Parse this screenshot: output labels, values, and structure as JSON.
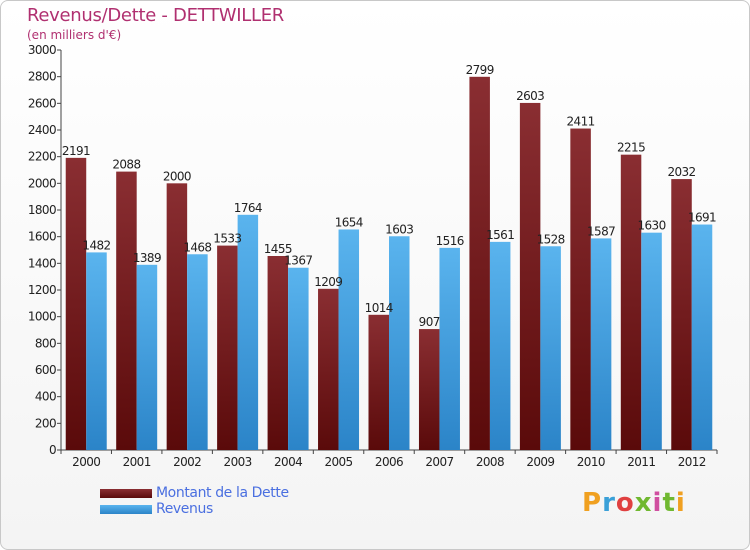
{
  "title": "Revenus/Dette - DETTWILLER",
  "subtitle": "(en milliers d'€)",
  "colors": {
    "dette_top": "#8a2e32",
    "dette_bottom": "#5a0a0a",
    "revenus_top": "#5ab4ee",
    "revenus_bottom": "#2b84c8",
    "title": "#b03070",
    "legend_text": "#4a6fe0"
  },
  "legend": {
    "dette": "Montant de la Dette",
    "revenus": "Revenus"
  },
  "logo": "Proxiti",
  "chart_data": {
    "type": "bar",
    "title": "Revenus/Dette - DETTWILLER",
    "ylabel": "(en milliers d'€)",
    "ylim": [
      0,
      3000
    ],
    "yticks": [
      0,
      200,
      400,
      600,
      800,
      1000,
      1200,
      1400,
      1600,
      1800,
      2000,
      2200,
      2400,
      2600,
      2800,
      3000
    ],
    "grid": false,
    "legend_position": "bottom-left",
    "categories": [
      "2000",
      "2001",
      "2002",
      "2003",
      "2004",
      "2005",
      "2006",
      "2007",
      "2008",
      "2009",
      "2010",
      "2011",
      "2012"
    ],
    "series": [
      {
        "name": "Montant de la Dette",
        "values": [
          2191,
          2088,
          2000,
          1533,
          1455,
          1209,
          1014,
          907,
          2799,
          2603,
          2411,
          2215,
          2032
        ]
      },
      {
        "name": "Revenus",
        "values": [
          1482,
          1389,
          1468,
          1764,
          1367,
          1654,
          1603,
          1516,
          1561,
          1528,
          1587,
          1630,
          1691
        ]
      }
    ]
  }
}
